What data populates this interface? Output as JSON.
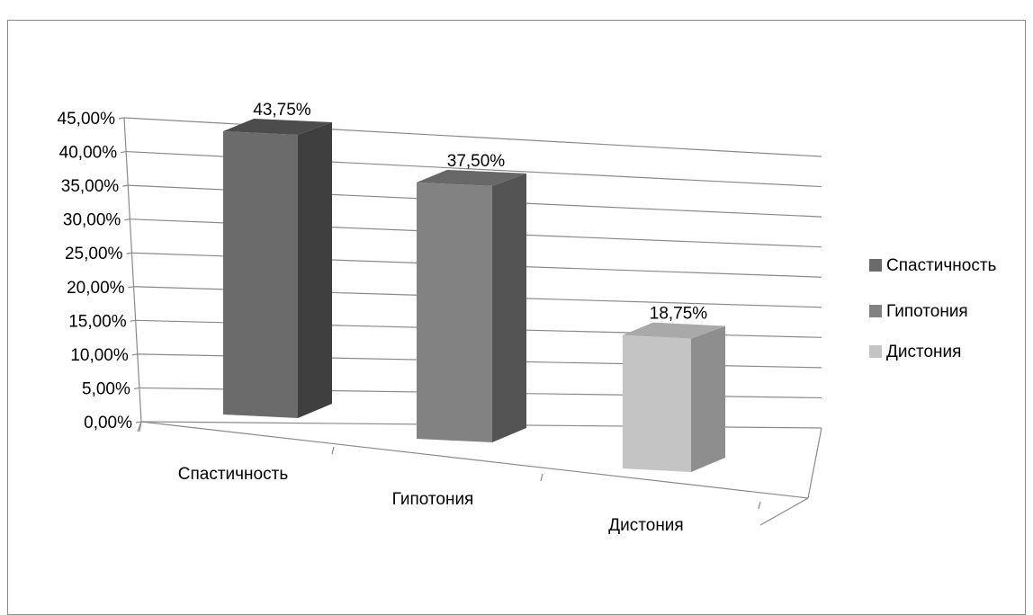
{
  "chart_data": {
    "type": "bar",
    "title": "",
    "xlabel": "",
    "ylabel": "",
    "categories": [
      "Спастичность",
      "Гипотония",
      "Дистония"
    ],
    "values": [
      43.75,
      37.5,
      18.75
    ],
    "data_labels": [
      "43,75%",
      "37,50%",
      "18,75%"
    ],
    "ylim": [
      0,
      45
    ],
    "y_ticks": [
      "0,00%",
      "5,00%",
      "10,00%",
      "15,00%",
      "20,00%",
      "25,00%",
      "30,00%",
      "35,00%",
      "40,00%",
      "45,00%"
    ],
    "grid": true,
    "three_d": true,
    "legend_position": "right",
    "legend": [
      {
        "name": "Спастичность",
        "color": "#595959"
      },
      {
        "name": "Гипотония",
        "color": "#7f7f7f"
      },
      {
        "name": "Дистония",
        "color": "#bfbfbf"
      }
    ],
    "colors": {
      "bars": [
        "#6b6b6b",
        "#828282",
        "#c4c4c4"
      ],
      "bar_sides": [
        "#3f3f3f",
        "#545454",
        "#8e8e8e"
      ],
      "bar_tops": [
        "#4c4c4c",
        "#686868",
        "#a9a9a9"
      ],
      "grid": "#8a8a8a",
      "frame": "#8a8a8a"
    }
  }
}
